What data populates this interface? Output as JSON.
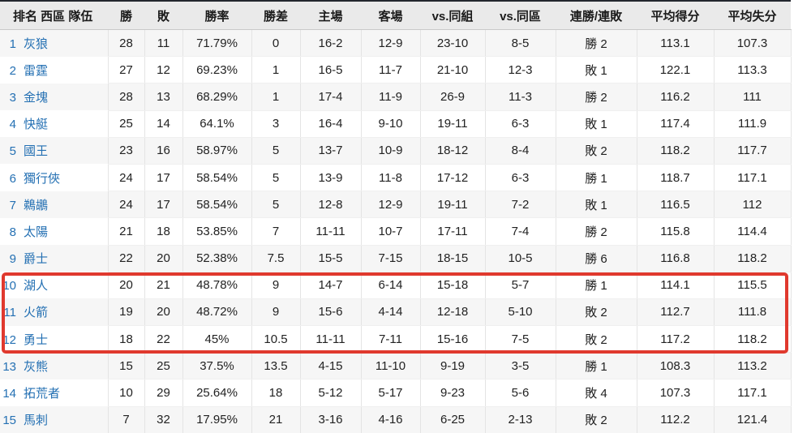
{
  "table": {
    "columns": [
      "排名 西區 隊伍",
      "勝",
      "敗",
      "勝率",
      "勝差",
      "主場",
      "客場",
      "vs.同組",
      "vs.同區",
      "連勝/連敗",
      "平均得分",
      "平均失分"
    ],
    "column_keys": [
      "wins",
      "losses",
      "win-pct",
      "games-behind",
      "home-record",
      "away-record",
      "vs-division",
      "vs-conference",
      "streak",
      "avg-points-for",
      "avg-points-against"
    ],
    "rows": [
      {
        "rank": "1",
        "team": "灰狼",
        "cells": [
          "28",
          "11",
          "71.79%",
          "0",
          "16-2",
          "12-9",
          "23-10",
          "8-5",
          "勝 2",
          "113.1",
          "107.3"
        ]
      },
      {
        "rank": "2",
        "team": "雷霆",
        "cells": [
          "27",
          "12",
          "69.23%",
          "1",
          "16-5",
          "11-7",
          "21-10",
          "12-3",
          "敗 1",
          "122.1",
          "113.3"
        ]
      },
      {
        "rank": "3",
        "team": "金塊",
        "cells": [
          "28",
          "13",
          "68.29%",
          "1",
          "17-4",
          "11-9",
          "26-9",
          "11-3",
          "勝 2",
          "116.2",
          "111"
        ]
      },
      {
        "rank": "4",
        "team": "快艇",
        "cells": [
          "25",
          "14",
          "64.1%",
          "3",
          "16-4",
          "9-10",
          "19-11",
          "6-3",
          "敗 1",
          "117.4",
          "111.9"
        ]
      },
      {
        "rank": "5",
        "team": "國王",
        "cells": [
          "23",
          "16",
          "58.97%",
          "5",
          "13-7",
          "10-9",
          "18-12",
          "8-4",
          "敗 2",
          "118.2",
          "117.7"
        ]
      },
      {
        "rank": "6",
        "team": "獨行俠",
        "cells": [
          "24",
          "17",
          "58.54%",
          "5",
          "13-9",
          "11-8",
          "17-12",
          "6-3",
          "勝 1",
          "118.7",
          "117.1"
        ]
      },
      {
        "rank": "7",
        "team": "鵜鶘",
        "cells": [
          "24",
          "17",
          "58.54%",
          "5",
          "12-8",
          "12-9",
          "19-11",
          "7-2",
          "敗 1",
          "116.5",
          "112"
        ]
      },
      {
        "rank": "8",
        "team": "太陽",
        "cells": [
          "21",
          "18",
          "53.85%",
          "7",
          "11-11",
          "10-7",
          "17-11",
          "7-4",
          "勝 2",
          "115.8",
          "114.4"
        ]
      },
      {
        "rank": "9",
        "team": "爵士",
        "cells": [
          "22",
          "20",
          "52.38%",
          "7.5",
          "15-5",
          "7-15",
          "18-15",
          "10-5",
          "勝 6",
          "116.8",
          "118.2"
        ]
      },
      {
        "rank": "10",
        "team": "湖人",
        "cells": [
          "20",
          "21",
          "48.78%",
          "9",
          "14-7",
          "6-14",
          "15-18",
          "5-7",
          "勝 1",
          "114.1",
          "115.5"
        ]
      },
      {
        "rank": "11",
        "team": "火箭",
        "cells": [
          "19",
          "20",
          "48.72%",
          "9",
          "15-6",
          "4-14",
          "12-18",
          "5-10",
          "敗 2",
          "112.7",
          "111.8"
        ]
      },
      {
        "rank": "12",
        "team": "勇士",
        "cells": [
          "18",
          "22",
          "45%",
          "10.5",
          "11-11",
          "7-11",
          "15-16",
          "7-5",
          "敗 2",
          "117.2",
          "118.2"
        ]
      },
      {
        "rank": "13",
        "team": "灰熊",
        "cells": [
          "15",
          "25",
          "37.5%",
          "13.5",
          "4-15",
          "11-10",
          "9-19",
          "3-5",
          "勝 1",
          "108.3",
          "113.2"
        ]
      },
      {
        "rank": "14",
        "team": "拓荒者",
        "cells": [
          "10",
          "29",
          "25.64%",
          "18",
          "5-12",
          "5-17",
          "9-23",
          "5-6",
          "敗 4",
          "107.3",
          "117.1"
        ]
      },
      {
        "rank": "15",
        "team": "馬刺",
        "cells": [
          "7",
          "32",
          "17.95%",
          "21",
          "3-16",
          "4-16",
          "6-25",
          "2-13",
          "敗 2",
          "112.2",
          "121.4"
        ]
      }
    ]
  },
  "highlight": {
    "highlighted_ranks": [
      "10",
      "11",
      "12"
    ],
    "border_color": "#e0392e"
  },
  "colors": {
    "link_blue": "#2470b3",
    "header_background": "#eaeaea",
    "odd_row_background": "#f6f6f6",
    "top_border": "#23272e"
  }
}
